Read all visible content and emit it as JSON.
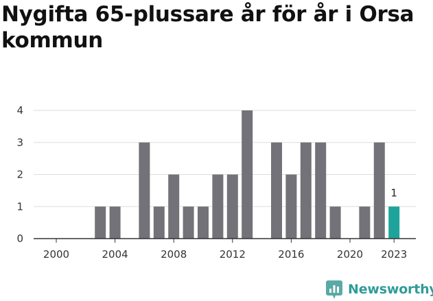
{
  "title": "Nygifta 65-plussare år för år i Orsa kommun",
  "brand": {
    "name": "Newsworthy",
    "icon": "newsworthy-logo-icon"
  },
  "colors": {
    "bar": "#737278",
    "highlight": "#1ea39a",
    "grid": "#dddddd",
    "axis": "#333333"
  },
  "chart_data": {
    "type": "bar",
    "title": "Nygifta 65-plussare år för år i Orsa kommun",
    "xlabel": "",
    "ylabel": "",
    "categories": [
      2000,
      2001,
      2002,
      2003,
      2004,
      2005,
      2006,
      2007,
      2008,
      2009,
      2010,
      2011,
      2012,
      2013,
      2014,
      2015,
      2016,
      2017,
      2018,
      2019,
      2020,
      2021,
      2022,
      2023
    ],
    "values": [
      0,
      0,
      0,
      1,
      1,
      0,
      3,
      1,
      2,
      1,
      1,
      2,
      2,
      4,
      0,
      3,
      2,
      3,
      3,
      1,
      0,
      1,
      3,
      1
    ],
    "highlight_index": 23,
    "highlight_label": "1",
    "ylim": [
      0,
      4
    ],
    "yticks": [
      0,
      1,
      2,
      3,
      4
    ],
    "xticks": [
      "2000",
      "2004",
      "2008",
      "2012",
      "2016",
      "2020",
      "2023"
    ],
    "xtick_years": [
      2000,
      2004,
      2008,
      2012,
      2016,
      2020,
      2023
    ],
    "grid": true
  }
}
